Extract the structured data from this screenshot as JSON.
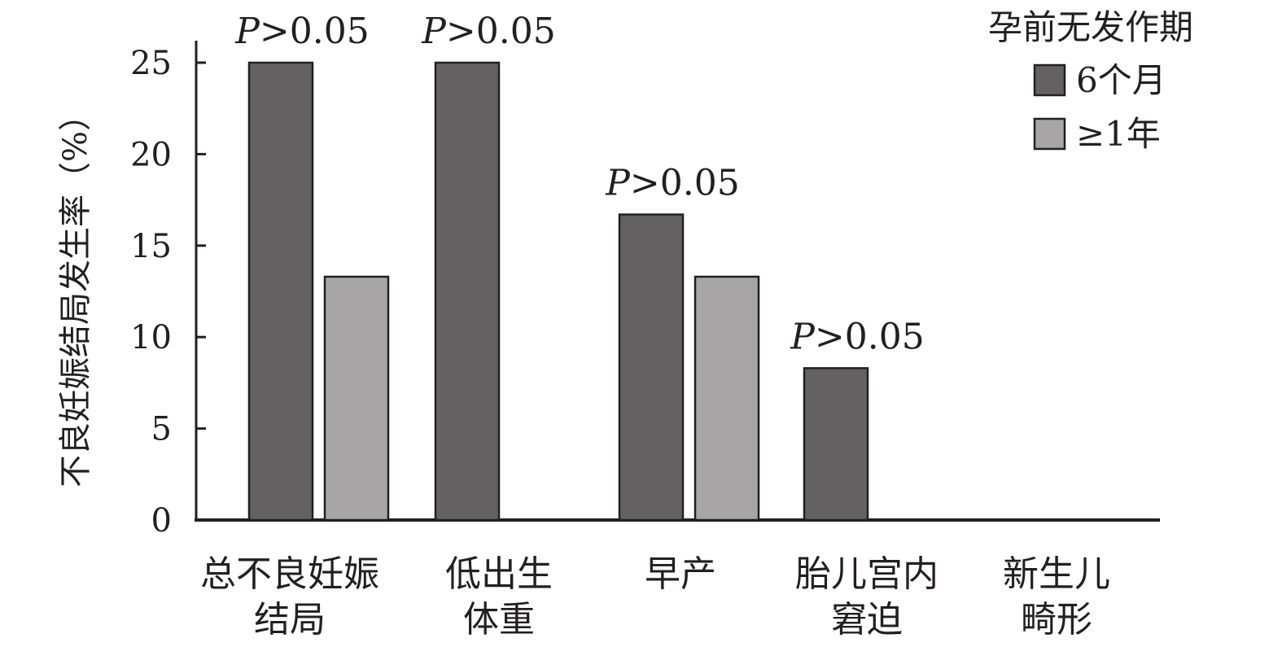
{
  "chart_data": {
    "type": "bar",
    "ylabel": "不良妊娠结局发生率（%）",
    "ylim": [
      0,
      25
    ],
    "yticks": [
      0,
      5,
      10,
      15,
      20,
      25
    ],
    "categories": [
      [
        "总不良妊娠",
        "结局"
      ],
      [
        "低出生",
        "体重"
      ],
      [
        "早产"
      ],
      [
        "胎儿宫内",
        "窘迫"
      ],
      [
        "新生儿",
        "畸形"
      ]
    ],
    "series": [
      {
        "name": "6个月",
        "color": "#636162",
        "values": [
          25.0,
          25.0,
          16.7,
          8.3,
          0
        ]
      },
      {
        "name": "≥1年",
        "color": "#a7a5a6",
        "values": [
          13.3,
          0,
          13.3,
          0,
          0
        ]
      }
    ],
    "annotations": [
      {
        "category": 0,
        "text": "P>0.05",
        "y": 25.0
      },
      {
        "category": 1,
        "text": "P>0.05",
        "y": 25.0
      },
      {
        "category": 2,
        "text": "P>0.05",
        "y": 16.7
      },
      {
        "category": 3,
        "text": "P>0.05",
        "y": 8.3
      }
    ],
    "legend": {
      "title": "孕前无发作期",
      "placement": "top-right"
    },
    "grid": false
  }
}
